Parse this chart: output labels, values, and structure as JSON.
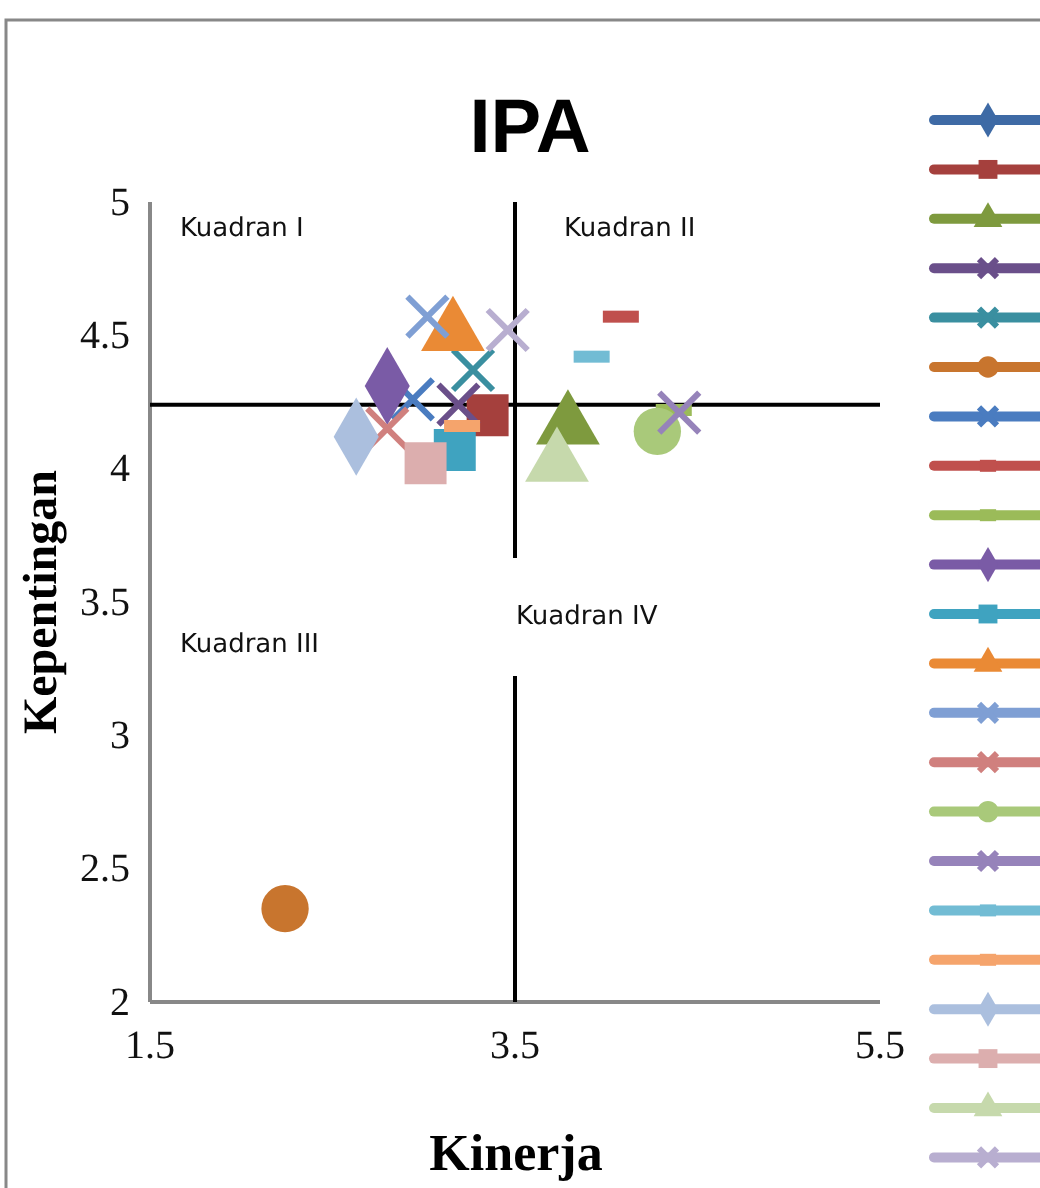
{
  "chart_data": {
    "type": "scatter",
    "title": "IPA",
    "xlabel": "Kinerja",
    "ylabel": "Kepentingan",
    "xlim": [
      1.5,
      5.5
    ],
    "xticks": [
      1.5,
      3.5,
      5.5
    ],
    "ylim": [
      2,
      5
    ],
    "yticks": [
      2,
      2.5,
      3,
      3.5,
      4,
      4.5,
      5
    ],
    "grid": false,
    "ref_lines": [
      {
        "axis": "y",
        "value": 4.24,
        "color": "#000000"
      },
      {
        "axis": "x",
        "value": 3.5,
        "color": "#000000"
      }
    ],
    "annotations": [
      "Kuadran I",
      "Kuadran II",
      "Kuadran III",
      "Kuadran IV"
    ],
    "series": [
      {
        "color": "#3e6aa5",
        "marker": "diamond",
        "x": [
          null
        ],
        "values": [
          null
        ]
      },
      {
        "color": "#a5403d",
        "marker": "square",
        "x": [
          3.35
        ],
        "values": [
          4.2
        ]
      },
      {
        "color": "#7e9a3e",
        "marker": "triangle",
        "x": [
          3.79
        ],
        "values": [
          4.16
        ]
      },
      {
        "color": "#6a4f8a",
        "marker": "cross",
        "x": [
          3.19
        ],
        "values": [
          4.24
        ]
      },
      {
        "color": "#3a8fa0",
        "marker": "cross",
        "x": [
          3.27
        ],
        "values": [
          4.37
        ]
      },
      {
        "color": "#c8752e",
        "marker": "circle",
        "x": [
          2.24
        ],
        "values": [
          2.35
        ]
      },
      {
        "color": "#4a7cc0",
        "marker": "cross",
        "x": [
          2.94
        ],
        "values": [
          4.26
        ]
      },
      {
        "color": "#c0504d",
        "x": [
          4.08
        ],
        "values": [
          4.57
        ]
      },
      {
        "color": "#9bbb59",
        "x": [
          4.37
        ],
        "values": [
          4.22
        ]
      },
      {
        "color": "#7a5ba6",
        "marker": "diamond",
        "x": [
          2.8
        ],
        "values": [
          4.31
        ]
      },
      {
        "color": "#3fa3c0",
        "marker": "square",
        "x": [
          3.17
        ],
        "values": [
          4.07
        ]
      },
      {
        "color": "#ea8a35",
        "marker": "triangle",
        "x": [
          3.16
        ],
        "values": [
          4.51
        ]
      },
      {
        "color": "#7f9fd4",
        "marker": "cross",
        "x": [
          3.02
        ],
        "values": [
          4.57
        ]
      },
      {
        "color": "#d0807e",
        "marker": "cross",
        "x": [
          2.8
        ],
        "values": [
          4.15
        ]
      },
      {
        "color": "#a9c97a",
        "marker": "circle",
        "x": [
          4.28
        ],
        "values": [
          4.14
        ]
      },
      {
        "color": "#9683ba",
        "marker": "cross",
        "x": [
          4.4
        ],
        "values": [
          4.21
        ]
      },
      {
        "color": "#72bcd4",
        "x": [
          3.92
        ],
        "values": [
          4.42
        ]
      },
      {
        "color": "#f5a46c",
        "x": [
          3.21
        ],
        "values": [
          4.16
        ]
      },
      {
        "color": "#abbfde",
        "marker": "diamond",
        "x": [
          2.63
        ],
        "values": [
          4.12
        ]
      },
      {
        "color": "#dcaeae",
        "marker": "square",
        "x": [
          3.01
        ],
        "values": [
          4.02
        ]
      },
      {
        "color": "#c6d9ac",
        "marker": "triangle",
        "x": [
          3.73
        ],
        "values": [
          4.02
        ]
      },
      {
        "color": "#b8aed0",
        "marker": "cross",
        "x": [
          3.46
        ],
        "values": [
          4.52
        ]
      }
    ]
  }
}
